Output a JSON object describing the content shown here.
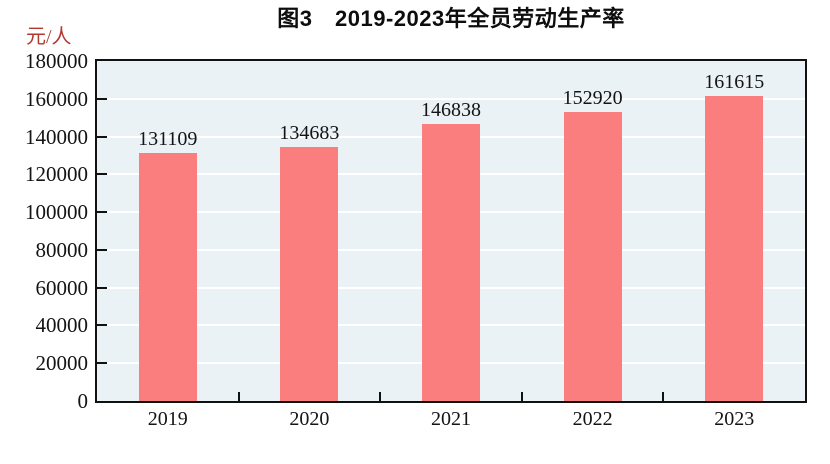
{
  "chart_data": {
    "type": "bar",
    "title": "图3　2019-2023年全员劳动生产率",
    "unit_label": "元/人",
    "categories": [
      "2019",
      "2020",
      "2021",
      "2022",
      "2023"
    ],
    "values": [
      131109,
      134683,
      146838,
      152920,
      161615
    ],
    "ylim": [
      0,
      180000
    ],
    "yticks": [
      0,
      20000,
      40000,
      60000,
      80000,
      100000,
      120000,
      140000,
      160000,
      180000
    ],
    "grid": true,
    "legend": "none",
    "value_labels_shown": true,
    "colors": {
      "bar": "#fb7e7e",
      "plot_background": "#eaf2f6",
      "gridline": "#ffffff",
      "axis_border": "#111111",
      "text": "#141414",
      "unit_label": "#b03a30"
    }
  }
}
